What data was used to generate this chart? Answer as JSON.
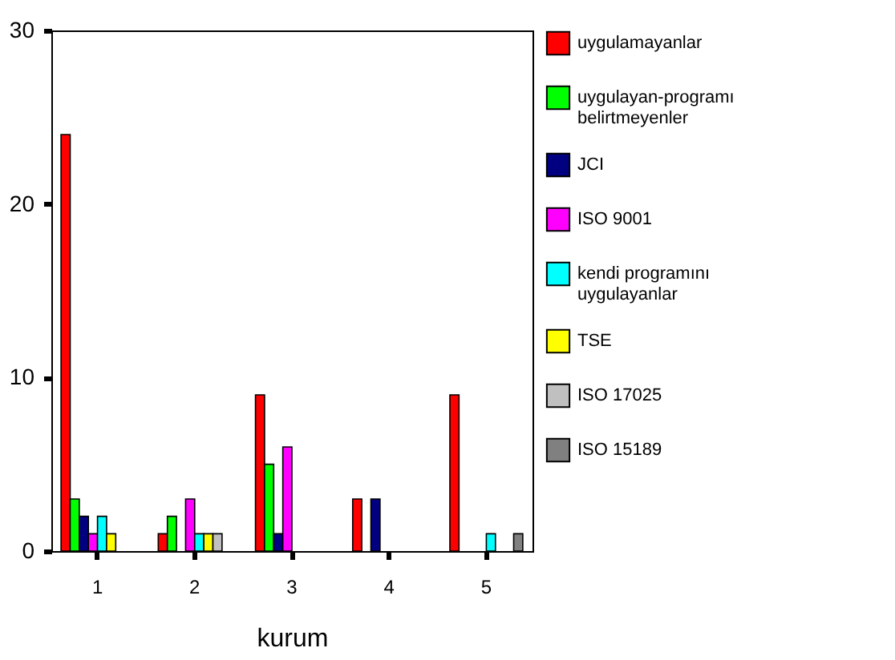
{
  "chart_data": {
    "type": "bar",
    "xlabel": "kurum",
    "categories": [
      "1",
      "2",
      "3",
      "4",
      "5"
    ],
    "series": [
      {
        "name": "uygulamayanlar",
        "color": "#ff0000",
        "values": [
          24,
          1,
          9,
          3,
          9
        ]
      },
      {
        "name": "uygulayan-programı belirtmeyenler",
        "color": "#00ff00",
        "values": [
          3,
          2,
          5,
          null,
          null
        ]
      },
      {
        "name": "JCI",
        "color": "#000080",
        "values": [
          2,
          null,
          1,
          3,
          null
        ]
      },
      {
        "name": "ISO 9001",
        "color": "#ff00ff",
        "values": [
          1,
          3,
          6,
          null,
          null
        ]
      },
      {
        "name": "kendi programını uygulayanlar",
        "color": "#00ffff",
        "values": [
          2,
          1,
          null,
          null,
          1
        ]
      },
      {
        "name": "TSE",
        "color": "#ffff00",
        "values": [
          1,
          1,
          null,
          null,
          null
        ]
      },
      {
        "name": "ISO 17025",
        "color": "#c0c0c0",
        "values": [
          null,
          1,
          null,
          null,
          null
        ]
      },
      {
        "name": "ISO 15189",
        "color": "#808080",
        "values": [
          null,
          null,
          null,
          null,
          1
        ]
      }
    ],
    "ylim": [
      0,
      30
    ],
    "yticks": [
      0,
      10,
      20,
      30
    ],
    "legend": "right"
  }
}
